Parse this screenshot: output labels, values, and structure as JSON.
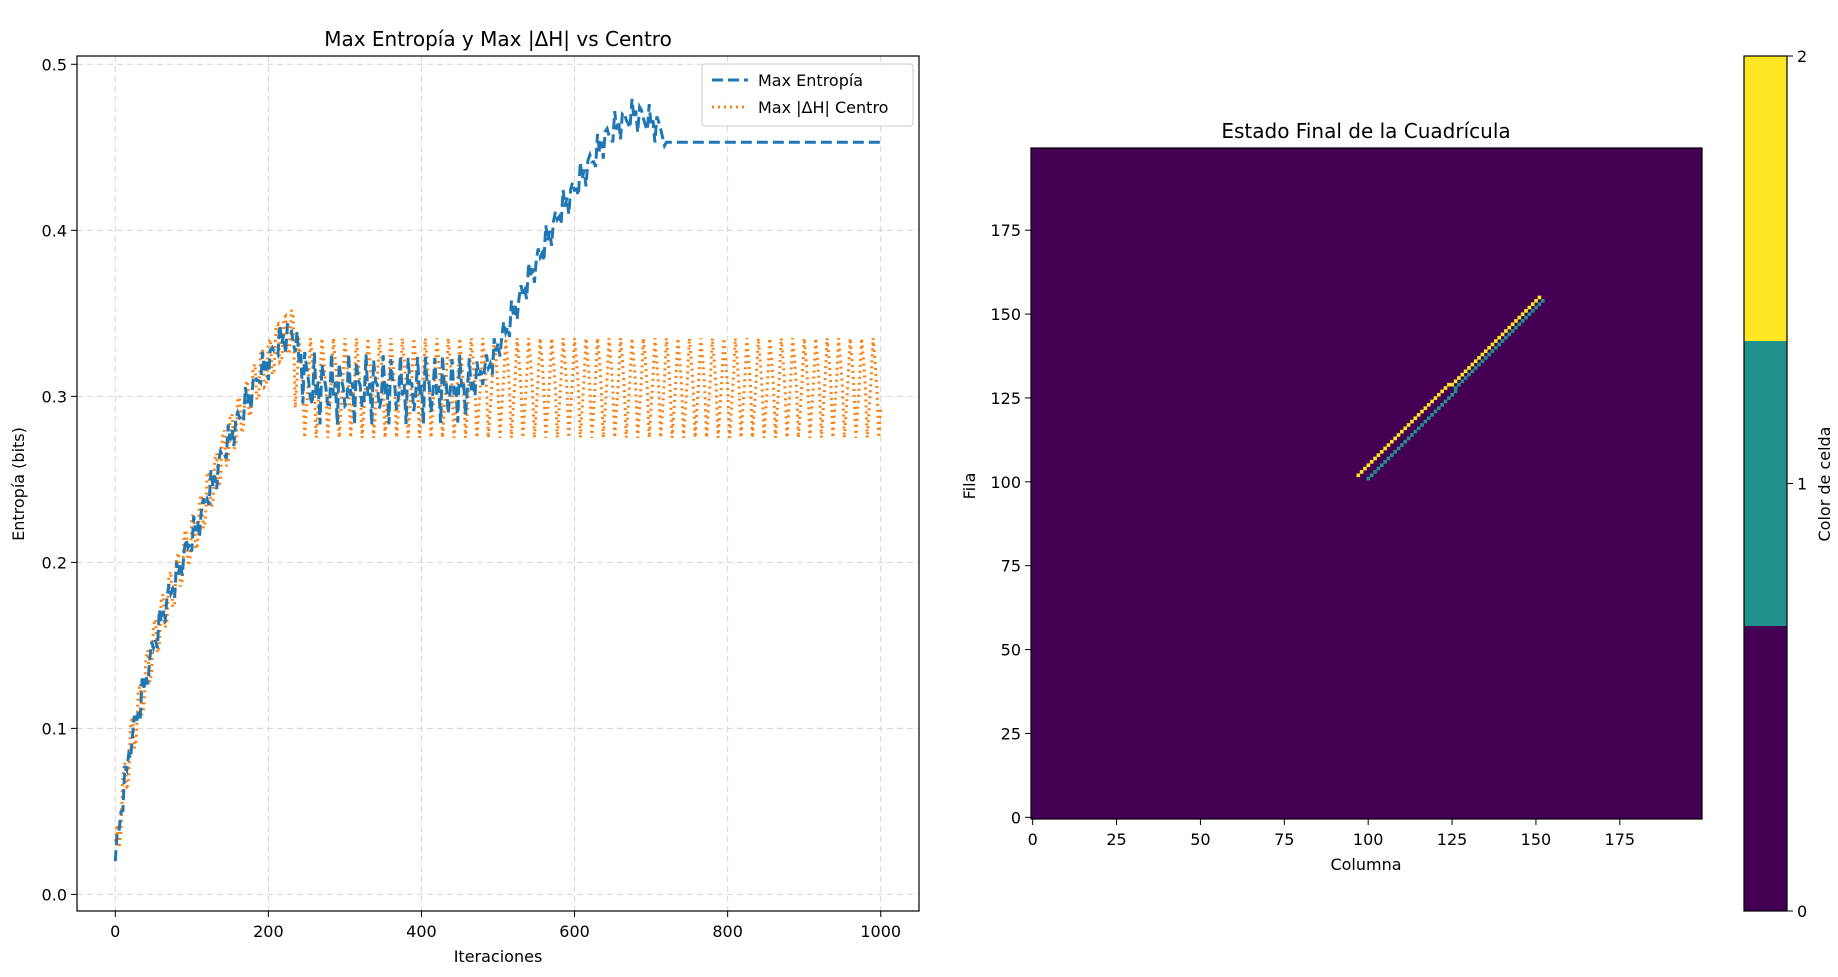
{
  "chart_data": [
    {
      "type": "line",
      "title": "Max Entropía y Max |ΔH| vs Centro",
      "xlabel": "Iteraciones",
      "ylabel": "Entropía (bits)",
      "xlim": [
        -50,
        1050
      ],
      "ylim": [
        -0.01,
        0.505
      ],
      "xticks": [
        0,
        200,
        400,
        600,
        800,
        1000
      ],
      "yticks": [
        0.0,
        0.1,
        0.2,
        0.3,
        0.4,
        0.5
      ],
      "grid": true,
      "legend_position": "top-right",
      "series": [
        {
          "name": "Max Entropía",
          "color": "#1f77b4",
          "line_style": "dashed",
          "x": [
            0,
            10,
            20,
            30,
            40,
            50,
            60,
            70,
            80,
            90,
            100,
            110,
            120,
            130,
            140,
            150,
            160,
            170,
            180,
            190,
            200,
            210,
            220,
            230,
            240,
            250,
            260,
            270,
            280,
            300,
            320,
            340,
            360,
            380,
            400,
            420,
            440,
            460,
            470,
            480,
            490,
            500,
            520,
            540,
            560,
            580,
            600,
            620,
            640,
            660,
            680,
            700,
            715,
            720,
            1000
          ],
          "y": [
            0.02,
            0.06,
            0.09,
            0.11,
            0.13,
            0.15,
            0.165,
            0.18,
            0.19,
            0.205,
            0.215,
            0.225,
            0.24,
            0.25,
            0.265,
            0.275,
            0.285,
            0.295,
            0.305,
            0.315,
            0.32,
            0.33,
            0.335,
            0.34,
            0.325,
            0.31,
            0.305,
            0.305,
            0.305,
            0.305,
            0.305,
            0.305,
            0.305,
            0.305,
            0.305,
            0.305,
            0.305,
            0.305,
            0.31,
            0.315,
            0.32,
            0.33,
            0.35,
            0.37,
            0.39,
            0.41,
            0.425,
            0.44,
            0.455,
            0.465,
            0.47,
            0.465,
            0.46,
            0.453,
            0.453
          ]
        },
        {
          "name": "Max |ΔH| Centro",
          "color": "#ff7f0e",
          "line_style": "dotted",
          "x": [
            0,
            10,
            20,
            30,
            40,
            50,
            60,
            70,
            80,
            90,
            100,
            110,
            120,
            130,
            140,
            150,
            160,
            170,
            180,
            190,
            200,
            210,
            220,
            230,
            240,
            250,
            260,
            280,
            300,
            350,
            400,
            450,
            500,
            550,
            600,
            650,
            700,
            750,
            800,
            850,
            900,
            950,
            1000
          ],
          "y": [
            0.02,
            0.06,
            0.09,
            0.11,
            0.13,
            0.15,
            0.165,
            0.18,
            0.19,
            0.205,
            0.215,
            0.225,
            0.24,
            0.25,
            0.265,
            0.275,
            0.285,
            0.295,
            0.305,
            0.315,
            0.32,
            0.33,
            0.335,
            0.34,
            0.325,
            0.31,
            0.305,
            0.305,
            0.305,
            0.305,
            0.305,
            0.305,
            0.305,
            0.305,
            0.305,
            0.305,
            0.305,
            0.305,
            0.305,
            0.305,
            0.305,
            0.305,
            0.305
          ],
          "oscillation_range": [
            0.275,
            0.335
          ]
        }
      ]
    },
    {
      "type": "heatmap",
      "title": "Estado Final de la Cuadrícula",
      "xlabel": "Columna",
      "ylabel": "Fila",
      "grid_size": [
        200,
        200
      ],
      "xlim": [
        0,
        200
      ],
      "ylim": [
        0,
        200
      ],
      "xticks": [
        0,
        25,
        50,
        75,
        100,
        125,
        150,
        175
      ],
      "yticks": [
        0,
        25,
        50,
        75,
        100,
        125,
        150,
        175
      ],
      "background_value": 0,
      "features": [
        {
          "value": 2,
          "from": [
            97,
            102
          ],
          "to": [
            151,
            155
          ]
        },
        {
          "value": 1,
          "from": [
            100,
            101
          ],
          "to": [
            152,
            154
          ]
        }
      ],
      "colorbar": {
        "label": "Color de celda",
        "ticks": [
          0,
          1,
          2
        ],
        "colors": [
          "#440154",
          "#21918c",
          "#fde725"
        ]
      }
    }
  ]
}
